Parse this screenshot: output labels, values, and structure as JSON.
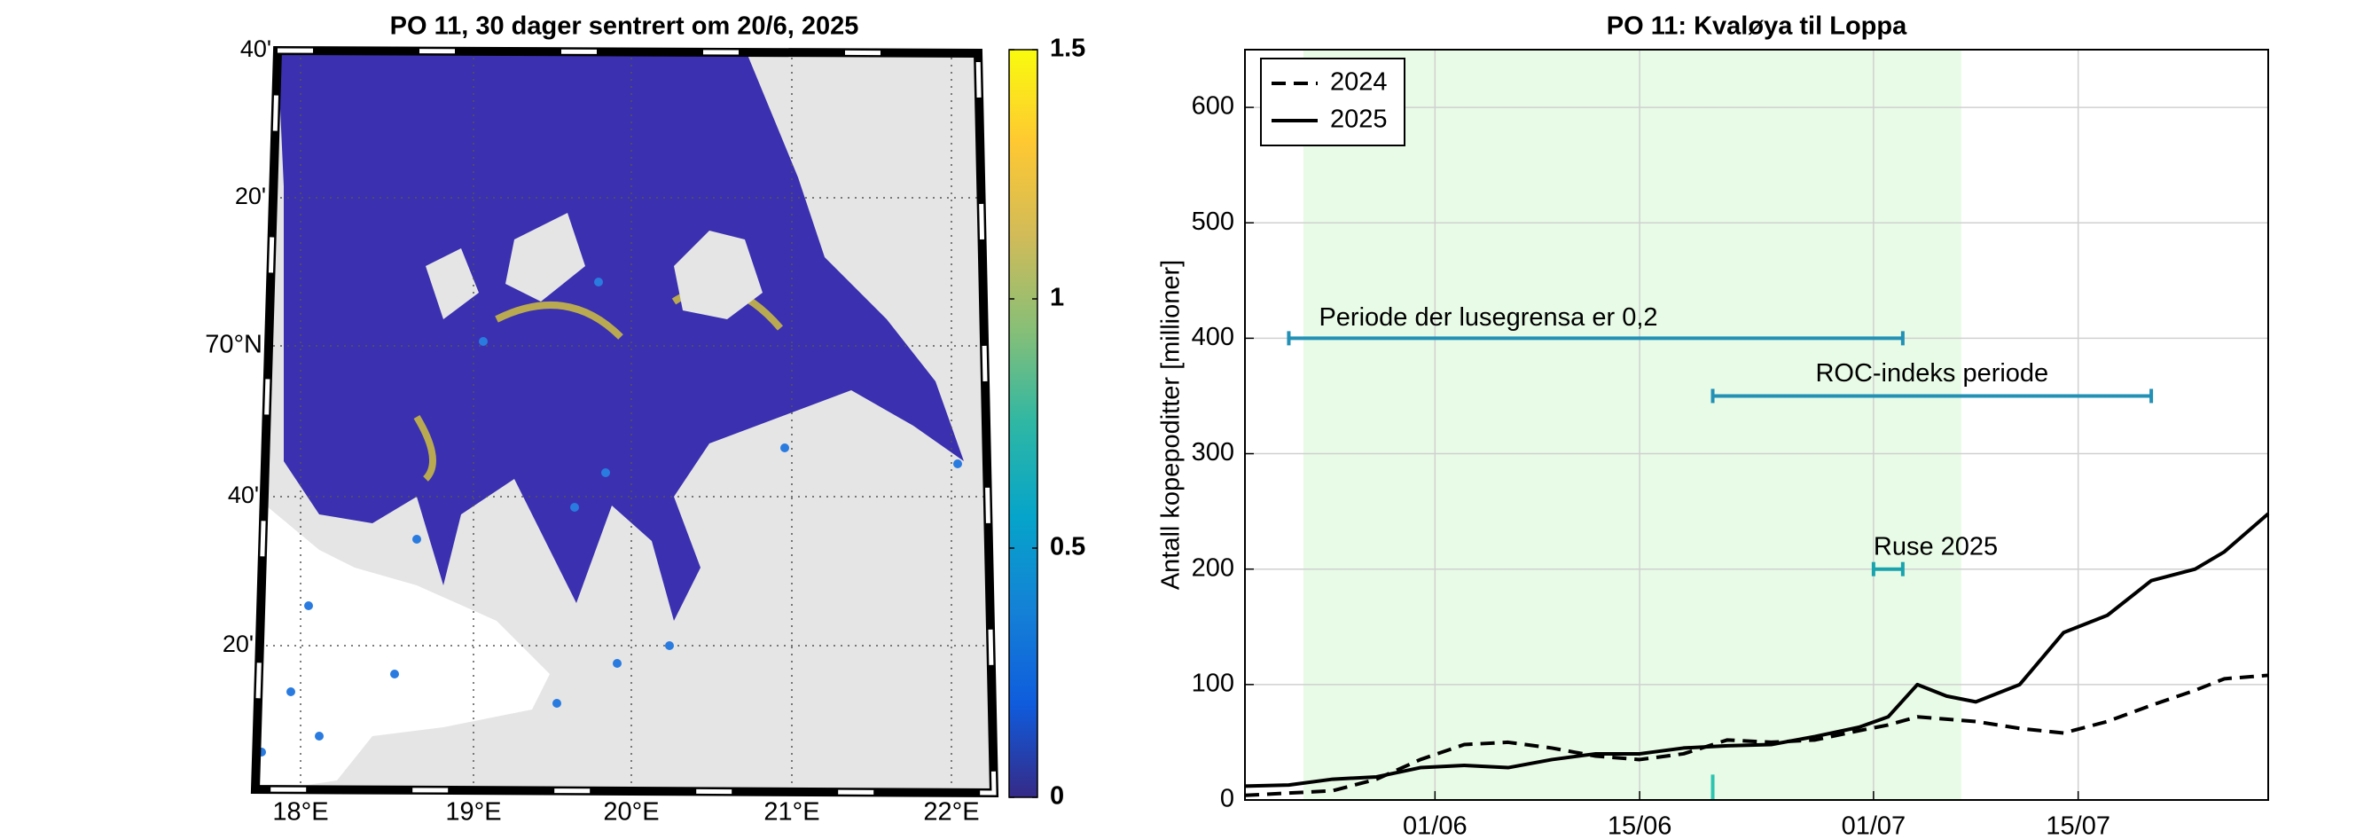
{
  "chart_data": [
    {
      "type": "map",
      "title": "PO 11, 30 dager sentrert om 20/6, 2025",
      "lat_labels": [
        "40'",
        "20'",
        "70°N",
        "40'",
        "20'"
      ],
      "lon_labels": [
        "18°E",
        "19°E",
        "20°E",
        "21°E",
        "22°E"
      ],
      "colorbar": {
        "lim": [
          0,
          1.5
        ],
        "ticks": [
          0,
          0.5,
          1,
          1.5
        ],
        "colors": [
          "#352a87",
          "#0f5cdd",
          "#1481d6",
          "#06a4ca",
          "#2eb7a4",
          "#87bf77",
          "#d1bb59",
          "#fec832",
          "#f9fb0e"
        ]
      }
    },
    {
      "type": "line",
      "title": "PO 11: Kvaløya til Loppa",
      "y_label": "Antall kopepoditter [millioner]",
      "x": [
        "19/05",
        "22/05",
        "25/05",
        "28/05",
        "31/05",
        "03/06",
        "06/06",
        "09/06",
        "12/06",
        "15/06",
        "18/06",
        "21/06",
        "24/06",
        "27/06",
        "30/06",
        "02/07",
        "04/07",
        "06/07",
        "08/07",
        "11/07",
        "14/07",
        "17/07",
        "20/07",
        "23/07",
        "25/07",
        "28/07"
      ],
      "series": [
        {
          "name": "2024",
          "color": "#000000",
          "dash": true,
          "values": [
            4,
            6,
            8,
            18,
            35,
            48,
            50,
            45,
            38,
            35,
            40,
            52,
            50,
            52,
            60,
            65,
            72,
            70,
            68,
            62,
            58,
            68,
            82,
            95,
            105,
            108
          ]
        },
        {
          "name": "2025",
          "color": "#000000",
          "dash": false,
          "values": [
            12,
            13,
            18,
            20,
            28,
            30,
            28,
            35,
            40,
            40,
            45,
            47,
            48,
            55,
            63,
            72,
            100,
            90,
            85,
            100,
            145,
            160,
            190,
            200,
            215,
            248
          ]
        }
      ],
      "xlim": [
        "19/05",
        "28/07"
      ],
      "xticks": [
        "01/06",
        "15/06",
        "01/07",
        "15/07"
      ],
      "ylim": [
        0,
        650
      ],
      "yticks": [
        0,
        100,
        200,
        300,
        400,
        500,
        600
      ],
      "grid": true,
      "legend": "top-left",
      "shade": {
        "start": "23/05",
        "end": "07/07",
        "color": "#e8fbe6"
      },
      "intervals": [
        {
          "label": "Periode der lusegrensa er 0,2",
          "start": "22/05",
          "end": "03/07",
          "y": 400,
          "color": "#2390b5"
        },
        {
          "label": "ROC-indeks periode",
          "start": "20/06",
          "end": "20/07",
          "y": 350,
          "color": "#2390b5"
        },
        {
          "label": "Ruse 2025",
          "start": "01/07",
          "end": "03/07",
          "y": 200,
          "color": "#1aa3ad"
        }
      ],
      "marker": {
        "x": "20/06",
        "y": [
          0,
          22
        ],
        "color": "#2ec4b0"
      }
    }
  ]
}
